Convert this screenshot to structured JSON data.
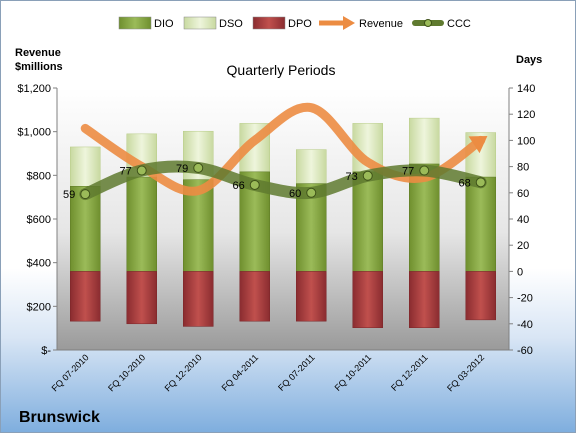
{
  "chart_data": {
    "type": "bar",
    "title": "Quarterly Periods",
    "company": "Brunswick",
    "left_axis_title": [
      "Revenue",
      "$millions"
    ],
    "right_axis_title": "Days",
    "categories": [
      "FQ 07-2010",
      "FQ 10-2010",
      "FQ 12-2010",
      "FQ 04-2011",
      "FQ 07-2011",
      "FQ 10-2011",
      "FQ 12-2011",
      "FQ 03-2012"
    ],
    "left_ticks": [
      "$-",
      "$200",
      "$400",
      "$600",
      "$800",
      "$1,000",
      "$1,200"
    ],
    "right_ticks": [
      "-60",
      "-40",
      "-20",
      "0",
      "20",
      "40",
      "60",
      "80",
      "100",
      "120",
      "140"
    ],
    "ylim_right": [
      -60,
      140
    ],
    "ylim_left": [
      0,
      1200
    ],
    "legend": [
      "DIO",
      "DSO",
      "DPO",
      "Revenue",
      "CCC"
    ],
    "series": [
      {
        "name": "DIO",
        "values": [
          65,
          72,
          70,
          76,
          67,
          76,
          82,
          72
        ]
      },
      {
        "name": "DSO",
        "values": [
          30,
          33,
          37,
          37,
          26,
          37,
          35,
          34
        ]
      },
      {
        "name": "DPO",
        "values": [
          -38,
          -40,
          -42,
          -38,
          -38,
          -43,
          -43,
          -37
        ]
      },
      {
        "name": "Revenue",
        "values": [
          1015,
          840,
          730,
          960,
          1110,
          860,
          790,
          960
        ]
      },
      {
        "name": "CCC",
        "values": [
          59,
          77,
          79,
          66,
          60,
          73,
          77,
          68
        ]
      }
    ],
    "ccc_labels": [
      "59",
      "77",
      "79",
      "66",
      "60",
      "73",
      "77",
      "68"
    ],
    "colors": {
      "DIO": "#7e9e3c",
      "DSO": "#d8e6b4",
      "DPO": "#a33a3d",
      "Revenue": "#ec8c42",
      "CCC": "#5f7a2f"
    },
    "legend_position": "top",
    "grid": false
  }
}
